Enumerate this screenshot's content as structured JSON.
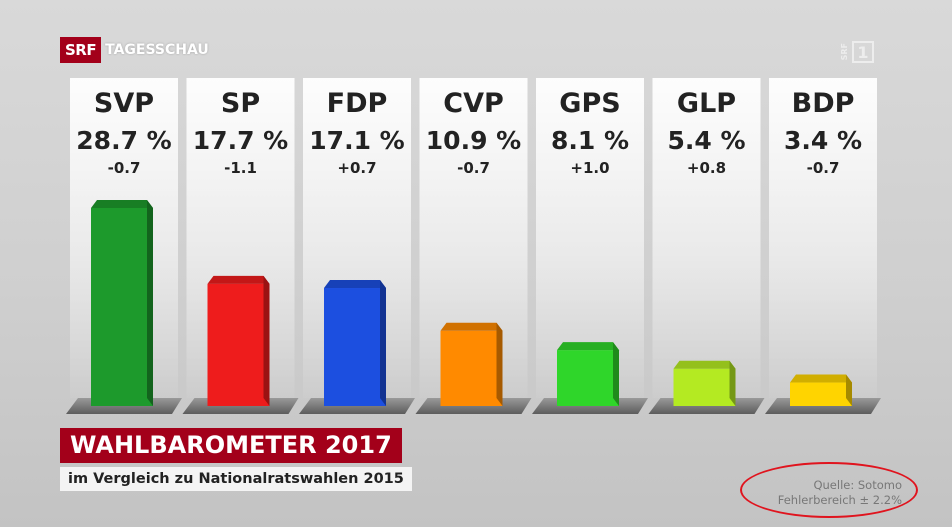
{
  "header": {
    "brand": "SRF",
    "program": "TAGESSCHAU",
    "channel_small": "SRF",
    "channel_number": "1"
  },
  "title": "WAHLBAROMETER 2017",
  "subtitle": "im Vergleich zu Nationalratswahlen 2015",
  "source": {
    "line1": "Quelle: Sotomo",
    "line2": "Fehlerbereich ± 2.2%"
  },
  "chart_data": {
    "type": "bar",
    "title": "WAHLBAROMETER 2017",
    "subtitle": "im Vergleich zu Nationalratswahlen 2015",
    "categories": [
      "SVP",
      "SP",
      "FDP",
      "CVP",
      "GPS",
      "GLP",
      "BDP"
    ],
    "values": [
      28.7,
      17.7,
      17.1,
      10.9,
      8.1,
      5.4,
      3.4
    ],
    "value_labels": [
      "28.7 %",
      "17.7 %",
      "17.1 %",
      "10.9 %",
      "8.1 %",
      "5.4 %",
      "3.4 %"
    ],
    "change_labels": [
      "-0.7",
      "-1.1",
      "+0.7",
      "-0.7",
      "+1.0",
      "+0.8",
      "-0.7"
    ],
    "changes": [
      -0.7,
      -1.1,
      0.7,
      -0.7,
      1.0,
      0.8,
      -0.7
    ],
    "colors": [
      "#1d9a2c",
      "#ee1c1c",
      "#1c4fe0",
      "#ff8a00",
      "#2fd62a",
      "#b4ea22",
      "#ffd400"
    ],
    "xlabel": "",
    "ylabel": "",
    "ylim": [
      0,
      32
    ],
    "grid": false,
    "legend": "none"
  }
}
